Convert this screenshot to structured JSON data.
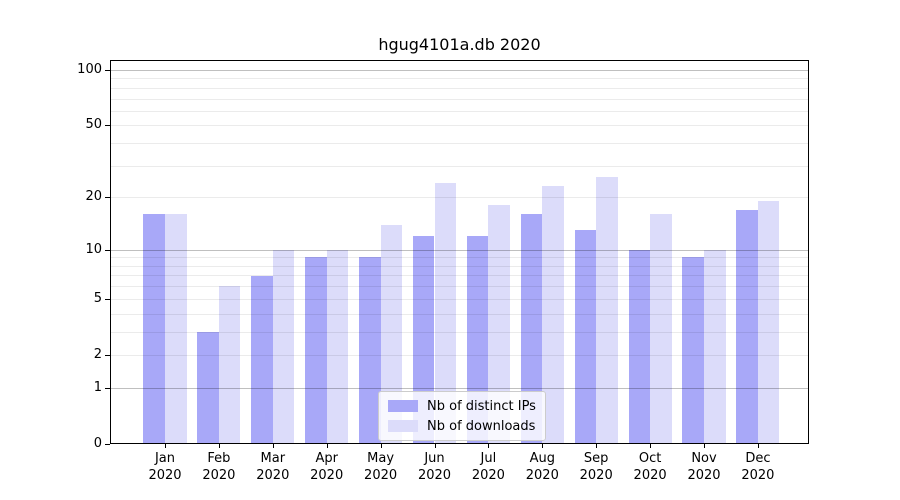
{
  "title": "hgug4101a.db 2020",
  "chart_data": {
    "type": "bar",
    "title": "hgug4101a.db 2020",
    "categories": [
      "Jan 2020",
      "Feb 2020",
      "Mar 2020",
      "Apr 2020",
      "May 2020",
      "Jun 2020",
      "Jul 2020",
      "Aug 2020",
      "Sep 2020",
      "Oct 2020",
      "Nov 2020",
      "Dec 2020"
    ],
    "series": [
      {
        "name": "Nb of distinct IPs",
        "color": "#a8a8f8",
        "values": [
          16,
          3,
          7,
          9,
          9,
          12,
          12,
          16,
          13,
          10,
          9,
          17
        ]
      },
      {
        "name": "Nb of downloads",
        "color": "#dcdcfa",
        "values": [
          16,
          6,
          10,
          10,
          14,
          24,
          18,
          23,
          26,
          16,
          10,
          19
        ]
      }
    ],
    "xlabel": "",
    "ylabel": "",
    "yscale": "log1p",
    "ylim": [
      0,
      114
    ],
    "y_tick_values": [
      0,
      1,
      2,
      5,
      10,
      20,
      50,
      100
    ],
    "y_tick_labels": [
      "0",
      "1",
      "2",
      "5",
      "10",
      "20",
      "50",
      "100"
    ],
    "y_major_gridlines": [
      1,
      10,
      100
    ],
    "y_minor_gridlines": [
      2,
      3,
      4,
      5,
      6,
      7,
      8,
      9,
      20,
      30,
      40,
      50,
      60,
      70,
      80,
      90
    ],
    "grid": true,
    "legend_position": "lower center"
  },
  "colors": {
    "background": "#ffffff",
    "spine": "#000000",
    "major_grid": "rgba(0,0,0,0.25)",
    "minor_grid": "rgba(0,0,0,0.08)",
    "legend_border": "#cccccc",
    "legend_background": "rgba(255,255,255,0.8)"
  },
  "legend": {
    "entries": [
      "Nb of distinct IPs",
      "Nb of downloads"
    ]
  }
}
